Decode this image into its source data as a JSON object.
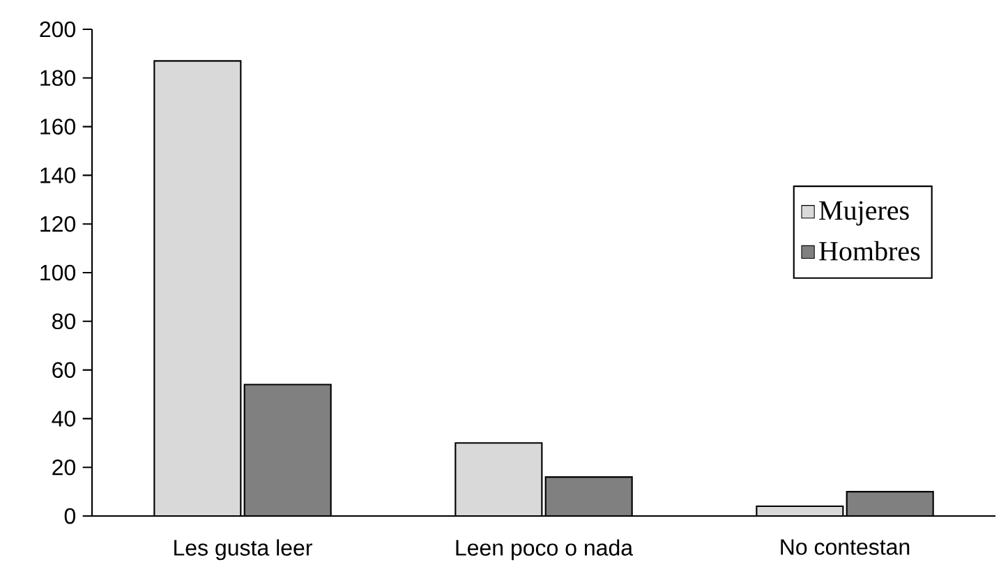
{
  "chart_data": {
    "type": "bar",
    "categories": [
      "Les gusta leer",
      "Leen poco o nada",
      "No contestan"
    ],
    "series": [
      {
        "name": "Mujeres",
        "color": "#d9d9d9",
        "values": [
          187,
          30,
          4
        ]
      },
      {
        "name": "Hombres",
        "color": "#808080",
        "values": [
          54,
          16,
          10
        ]
      }
    ],
    "ylim": [
      0,
      200
    ],
    "yticks": [
      0,
      20,
      40,
      60,
      80,
      100,
      120,
      140,
      160,
      180,
      200
    ],
    "grid": false,
    "legend": "right"
  }
}
